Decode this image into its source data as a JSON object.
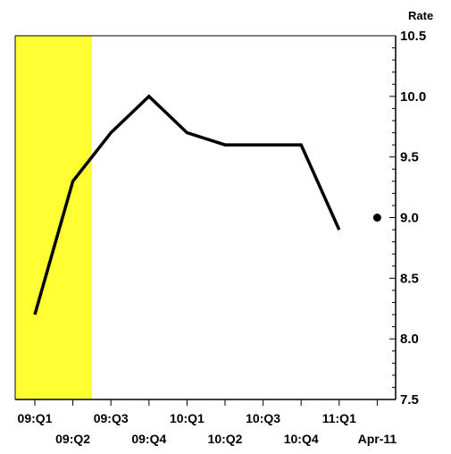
{
  "chart_data": {
    "type": "line",
    "title": "",
    "xlabel": "",
    "ylabel": "",
    "y_unit_label": "Rate",
    "ylim": [
      7.5,
      10.5
    ],
    "y_ticks": [
      "7.5",
      "8.0",
      "8.5",
      "9.0",
      "9.5",
      "10.0",
      "10.5"
    ],
    "y_axis_position": "right",
    "grid": false,
    "categories": [
      "09:Q1",
      "09:Q2",
      "09:Q3",
      "09:Q4",
      "10:Q1",
      "10:Q2",
      "10:Q3",
      "10:Q4",
      "11:Q1",
      "Apr-11"
    ],
    "series": [
      {
        "values": [
          8.2,
          9.3,
          9.7,
          10.0,
          9.7,
          9.6,
          9.6,
          9.6,
          8.9,
          null
        ],
        "color": "#000000"
      }
    ],
    "point_marker": {
      "category": "Apr-11",
      "value": 9.0,
      "color": "#000000"
    },
    "shaded_region": {
      "from_index": -0.5,
      "to_index": 1.5,
      "color": "#ffff33"
    }
  }
}
